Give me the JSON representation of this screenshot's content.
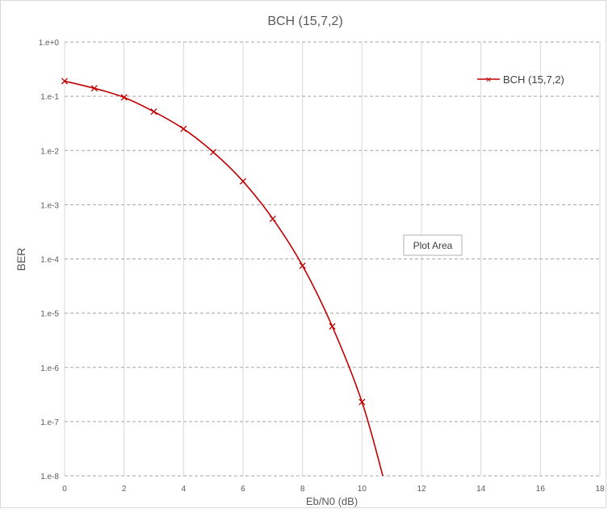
{
  "chart_data": {
    "type": "line",
    "title": "BCH (15,7,2)",
    "xlabel": "Eb/N0 (dB)",
    "ylabel": "BER",
    "xlim": [
      0,
      18
    ],
    "x_ticks": [
      0,
      2,
      4,
      6,
      8,
      10,
      12,
      14,
      16,
      18
    ],
    "x_tick_labels": [
      "0",
      "2",
      "4",
      "6",
      "8",
      "10",
      "12",
      "14",
      "16",
      "18"
    ],
    "y_scale": "log",
    "ylim": [
      1e-08,
      1
    ],
    "y_ticks": [
      1,
      0.1,
      0.01,
      0.001,
      0.0001,
      1e-05,
      1e-06,
      1e-07,
      1e-08
    ],
    "y_tick_labels": [
      "1.e+0",
      "1.e-1",
      "1.e-2",
      "1.e-3",
      "1.e-4",
      "1.e-5",
      "1.e-6",
      "1.e-7",
      "1.e-8"
    ],
    "grid": true,
    "legend_position": "top-right",
    "series": [
      {
        "name": "BCH (15,7,2)",
        "color": "#c00000",
        "marker": "x",
        "smooth": true,
        "x": [
          0,
          1,
          2,
          3,
          4,
          5,
          6,
          7,
          8,
          9,
          10,
          10.7
        ],
        "y": [
          0.19,
          0.14,
          0.095,
          0.052,
          0.025,
          0.0093,
          0.0027,
          0.00055,
          7.5e-05,
          5.7e-06,
          2.3e-07,
          1e-08
        ],
        "markers_shown": 11
      }
    ],
    "tooltip": "Plot Area"
  }
}
